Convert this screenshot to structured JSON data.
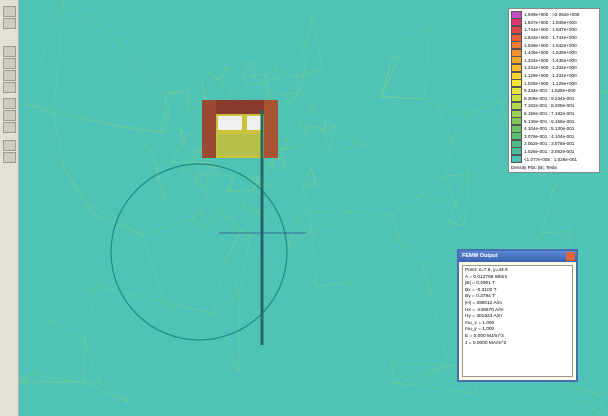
{
  "legend": {
    "entries": [
      {
        "text": "1.949e+000 : >2.052e+000",
        "color": "#c04fc0"
      },
      {
        "text": "1.847e+000 : 1.949e+000",
        "color": "#d9386e"
      },
      {
        "text": "1.744e+000 : 1.847e+000",
        "color": "#e0454a"
      },
      {
        "text": "1.642e+000 : 1.744e+000",
        "color": "#e8603a"
      },
      {
        "text": "1.539e+000 : 1.642e+000",
        "color": "#ee7a34"
      },
      {
        "text": "1.436e+000 : 1.539e+000",
        "color": "#f2932e"
      },
      {
        "text": "1.334e+000 : 1.436e+000",
        "color": "#f5aa2a"
      },
      {
        "text": "1.231e+000 : 1.334e+000",
        "color": "#f7c02a"
      },
      {
        "text": "1.129e+000 : 1.231e+000",
        "color": "#f7d52c"
      },
      {
        "text": "1.026e+000 : 1.129e+000",
        "color": "#f2e434"
      },
      {
        "text": "9.234e-001 : 1.026e+000",
        "color": "#e0e63c"
      },
      {
        "text": "8.208e-001 : 9.234e-001",
        "color": "#c8e044"
      },
      {
        "text": "7.182e-001 : 8.208e-001",
        "color": "#b0d84c"
      },
      {
        "text": "6.156e-001 : 7.182e-001",
        "color": "#98d054"
      },
      {
        "text": "5.130e-001 : 6.156e-001",
        "color": "#82c85c"
      },
      {
        "text": "4.104e-001 : 5.130e-001",
        "color": "#6ec266"
      },
      {
        "text": "3.078e-001 : 4.104e-001",
        "color": "#5ebd74"
      },
      {
        "text": "2.052e-001 : 3.078e-001",
        "color": "#52bb84"
      },
      {
        "text": "1.026e-001 : 2.052e-001",
        "color": "#4cbb98"
      },
      {
        "text": "<1.077e-005 : 1.026e-001",
        "color": "#4cc0b4"
      }
    ],
    "caption": "Density Plot: |B|, Tesla"
  },
  "output": {
    "title": "FEMM Output",
    "lines": [
      "Point: x=7.6, y=44.9",
      "A = 0.013768 Wb/m",
      "|B| = 0.4901 T",
      "Bx = -0.3102 T",
      "By = 0.3794 T",
      "|H| = 390012 A/m",
      "Hx = -246870 A/m",
      "Hy = 301923 A/m",
      "mu_x = 1.000",
      "mu_y = 1.000",
      "E = 0.000 MJ/m^3",
      "J = 0.0000 MA/m^2"
    ]
  }
}
